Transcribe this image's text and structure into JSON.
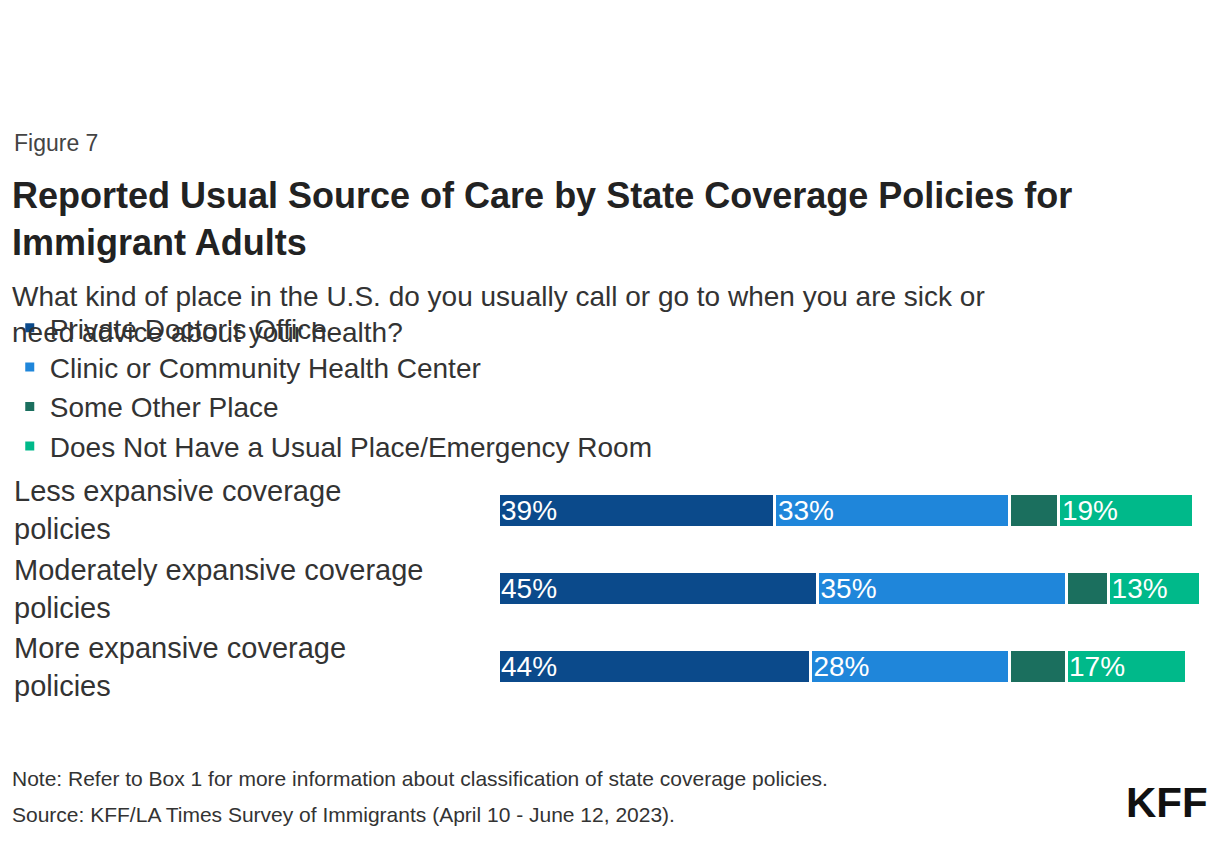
{
  "chart_data": {
    "type": "bar",
    "orientation": "horizontal",
    "stacked": true,
    "data_labels": true,
    "tick_labels": "y",
    "legend": "top",
    "figure_label": "Figure 7",
    "title": "Reported Usual Source of Care by State Coverage Policies for Immigrant Adults",
    "subtitle": "What kind of place in the U.S. do you usually call or go to when you are sick or need advice about your health?",
    "categories": [
      "Less expansive coverage policies",
      "Moderately expansive coverage policies",
      "More expansive coverage policies"
    ],
    "series": [
      {
        "name": "Private Doctor's Office",
        "color": "#0b4a8b",
        "values": [
          39,
          45,
          44
        ],
        "value_labels": [
          "39%",
          "45%",
          "44%"
        ]
      },
      {
        "name": "Clinic or Community Health Center",
        "color": "#1f86da",
        "values": [
          33,
          35,
          28
        ],
        "value_labels": [
          "33%",
          "35%",
          "28%"
        ]
      },
      {
        "name": "Some Other Place",
        "color": "#1b6f5e",
        "values": [
          7,
          6,
          8
        ],
        "data_labels": false
      },
      {
        "name": "Does Not Have a Usual Place/Emergency Room",
        "color": "#00b98a",
        "values": [
          19,
          13,
          17
        ],
        "value_labels": [
          "19%",
          "13%",
          "17%"
        ]
      }
    ],
    "xlim": [
      0,
      100
    ],
    "notes": [
      "Note: Refer to Box 1 for more information about classification of state coverage policies.",
      "Source: KFF/LA Times Survey of Immigrants (April 10 - June 12, 2023)."
    ],
    "logo": "KFF"
  }
}
